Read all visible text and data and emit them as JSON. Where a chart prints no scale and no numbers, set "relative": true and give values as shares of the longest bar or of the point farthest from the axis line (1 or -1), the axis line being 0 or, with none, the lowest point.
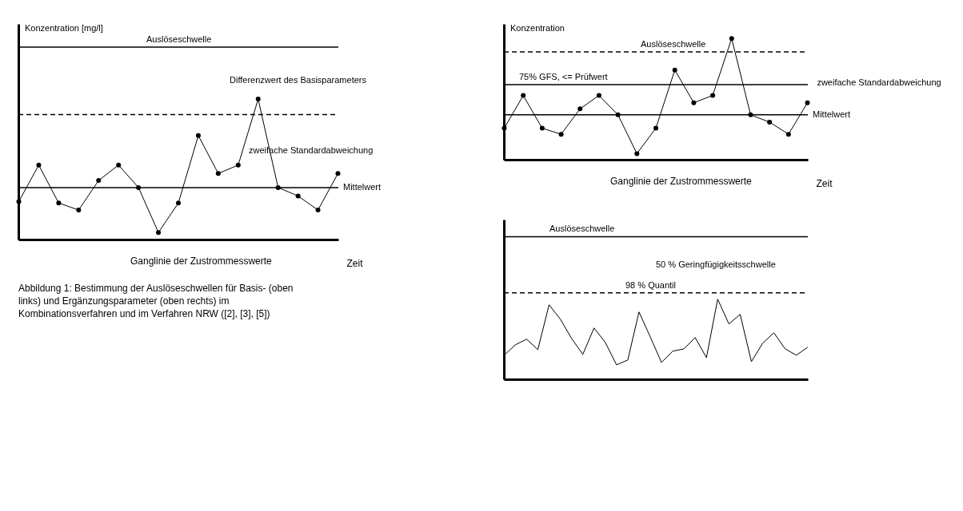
{
  "chart_data": [
    {
      "type": "line",
      "relative": true,
      "xlabel": "Zeit",
      "ylabel": "Konzentration [mg/l]",
      "marker": "circle",
      "grid": false,
      "categories": [
        null,
        null,
        null,
        null,
        null,
        null,
        null,
        null,
        null,
        null,
        null,
        null,
        null,
        null,
        null,
        null,
        null
      ],
      "series": [
        {
          "color": "#000000",
          "values": [
            0.27,
            0.53,
            0.26,
            0.21,
            0.42,
            0.53,
            0.37,
            0.05,
            0.26,
            0.74,
            0.47,
            0.53,
            1,
            0.37,
            0.31,
            0.21,
            0.47
          ]
        }
      ],
      "ref_lines": [
        {
          "axis": "y",
          "value": 1.37,
          "label": "Auslöseschwelle",
          "color": "#000000",
          "line_style": "solid"
        },
        {
          "axis": "y",
          "value": 0.89,
          "color": "#000000",
          "line_style": "dashed"
        },
        {
          "axis": "y",
          "value": 0.37,
          "label": "Mittelwert",
          "color": "#000000",
          "line_style": "solid"
        }
      ],
      "annotations": [
        "Differenzwert des Basisparameters",
        "zweifache Standardabweichung",
        "Ganglinie der Zustrommesswerte",
        "Abbildung 1: Bestimmung der Auslöseschwellen für Basis- (oben links) und Ergänzungsparameter (oben rechts) im Kombinationsverfahren und im Verfahren NRW ([2], [3], [5])"
      ]
    },
    {
      "type": "line",
      "relative": true,
      "xlabel": "Zeit",
      "ylabel": "Konzentration",
      "marker": "circle",
      "grid": false,
      "categories": [
        null,
        null,
        null,
        null,
        null,
        null,
        null,
        null,
        null,
        null,
        null,
        null,
        null,
        null,
        null,
        null,
        null
      ],
      "series": [
        {
          "color": "#000000",
          "values": [
            0.26,
            0.53,
            0.26,
            0.21,
            0.42,
            0.53,
            0.37,
            0.05,
            0.26,
            0.74,
            0.47,
            0.53,
            1,
            0.37,
            0.31,
            0.21,
            0.47
          ]
        }
      ],
      "ref_lines": [
        {
          "axis": "y",
          "value": 0.89,
          "label": "Auslöseschwelle",
          "color": "#000000",
          "line_style": "dashed"
        },
        {
          "axis": "y",
          "value": 0.62,
          "label": "75% GFS, <= Prüfwert",
          "color": "#000000",
          "line_style": "solid"
        },
        {
          "axis": "y",
          "value": 0.37,
          "label": "Mittelwert",
          "color": "#000000",
          "line_style": "solid"
        }
      ],
      "annotations": [
        "zweifache Standardabweichung",
        "Ganglinie der Zustrommesswerte"
      ]
    },
    {
      "type": "line",
      "relative": true,
      "marker": "none",
      "grid": false,
      "categories": [
        null,
        null,
        null,
        null,
        null,
        null,
        null,
        null,
        null,
        null,
        null,
        null,
        null,
        null,
        null,
        null,
        null,
        null,
        null,
        null,
        null,
        null,
        null,
        null,
        null,
        null,
        null,
        null
      ],
      "series": [
        {
          "color": "#000000",
          "values": [
            0.3,
            0.43,
            0.5,
            0.37,
            0.93,
            0.75,
            0.51,
            0.31,
            0.64,
            0.46,
            0.18,
            0.24,
            0.84,
            0.53,
            0.21,
            0.35,
            0.38,
            0.52,
            0.27,
            1,
            0.69,
            0.81,
            0.22,
            0.45,
            0.58,
            0.38,
            0.3,
            0.4
          ]
        }
      ],
      "ref_lines": [
        {
          "axis": "y",
          "value": 1.78,
          "label": "Auslöseschwelle",
          "color": "#000000",
          "line_style": "solid"
        },
        {
          "axis": "y",
          "value": 1.08,
          "label": "98 % Quantil",
          "color": "#000000",
          "line_style": "dashed"
        }
      ],
      "annotations": [
        "50 % Geringfügigkeitsschwelle"
      ]
    }
  ]
}
